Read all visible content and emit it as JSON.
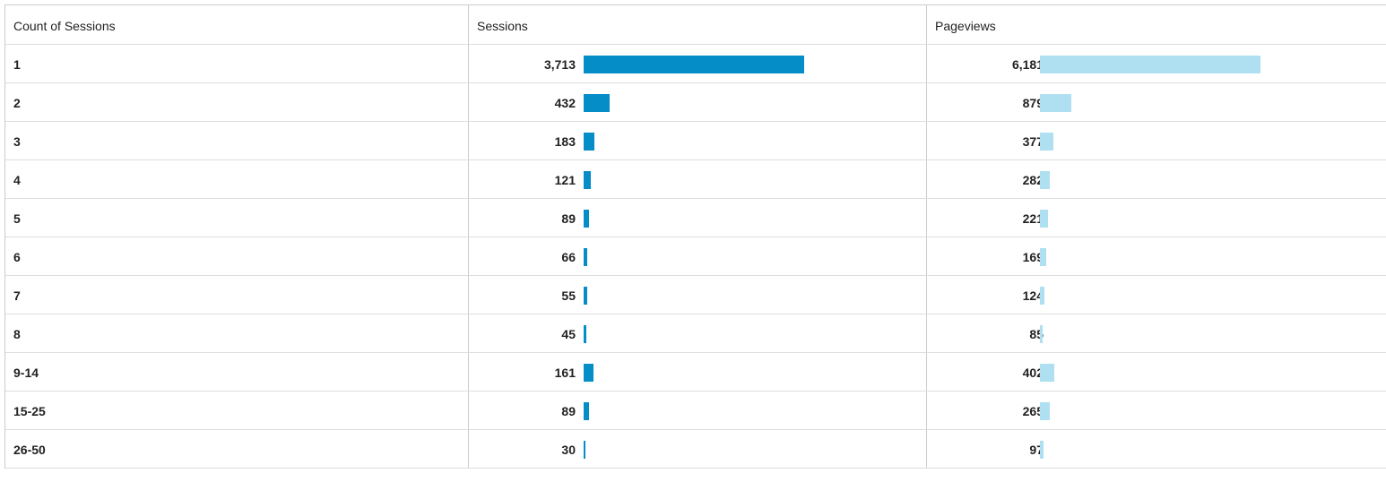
{
  "table": {
    "headers": [
      "Count of Sessions",
      "Sessions",
      "Pageviews"
    ]
  },
  "colors": {
    "sessions_bar": "#058dc7",
    "pageviews_bar": "#aee0f2"
  },
  "chart_data": {
    "type": "table",
    "columns": [
      "Count of Sessions",
      "Sessions",
      "Pageviews"
    ],
    "categories": [
      "1",
      "2",
      "3",
      "4",
      "5",
      "6",
      "7",
      "8",
      "9-14",
      "15-25",
      "26-50"
    ],
    "series": [
      {
        "name": "Sessions",
        "values": [
          3713,
          432,
          183,
          121,
          89,
          66,
          55,
          45,
          161,
          89,
          30
        ],
        "labels": [
          "3,713",
          "432",
          "183",
          "121",
          "89",
          "66",
          "55",
          "45",
          "161",
          "89",
          "30"
        ]
      },
      {
        "name": "Pageviews",
        "values": [
          6181,
          879,
          377,
          282,
          221,
          169,
          124,
          85,
          402,
          265,
          97
        ],
        "labels": [
          "6,181",
          "879",
          "377",
          "282",
          "221",
          "169",
          "124",
          "85",
          "402",
          "265",
          "97"
        ]
      }
    ]
  }
}
